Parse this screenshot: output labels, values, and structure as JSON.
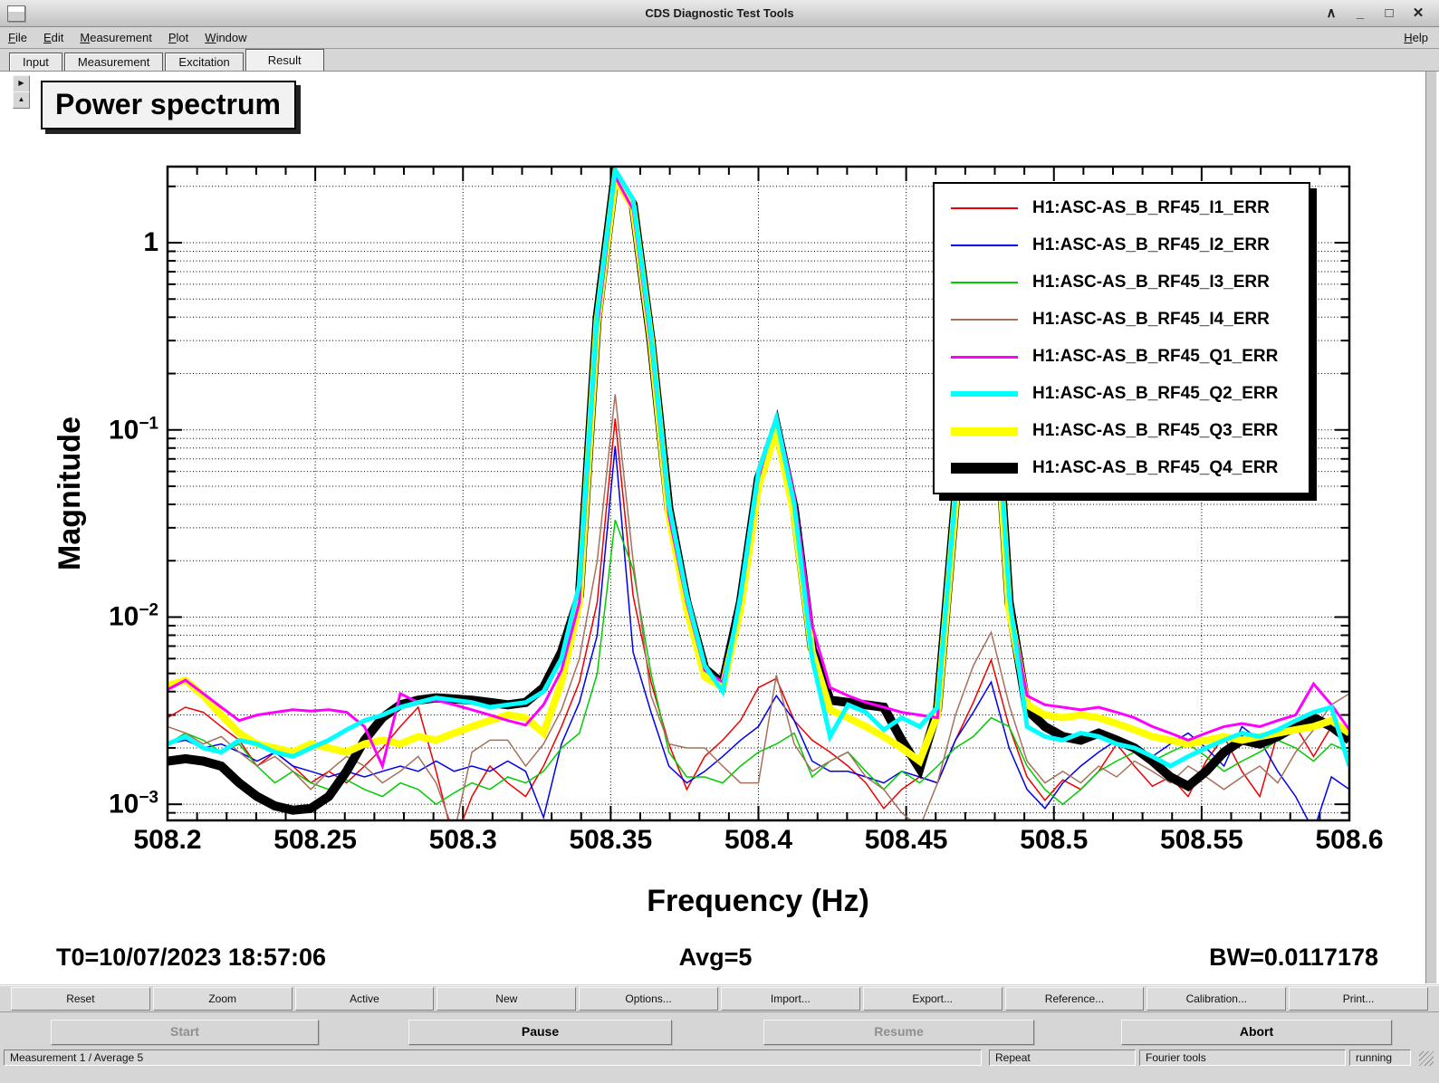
{
  "window": {
    "title": "CDS Diagnostic Test Tools",
    "controls": [
      {
        "name": "shade",
        "glyph": "∧"
      },
      {
        "name": "minimize",
        "glyph": "_"
      },
      {
        "name": "maximize",
        "glyph": "□"
      },
      {
        "name": "close",
        "glyph": "✕"
      }
    ]
  },
  "menubar": {
    "items": [
      "File",
      "Edit",
      "Measurement",
      "Plot",
      "Window"
    ],
    "help": "Help"
  },
  "tabs": {
    "items": [
      "Input",
      "Measurement",
      "Excitation",
      "Result"
    ],
    "active": "Result"
  },
  "plot": {
    "title": "Power spectrum",
    "xlabel": "Frequency (Hz)",
    "ylabel": "Magnitude",
    "t0": "T0=10/07/2023 18:57:06",
    "avg": "Avg=5",
    "bw": "BW=0.0117178"
  },
  "chart_data": {
    "type": "line",
    "title": "Power spectrum",
    "xlabel": "Frequency (Hz)",
    "ylabel": "Magnitude",
    "xscale": "linear",
    "yscale": "log",
    "xlim": [
      508.2,
      508.6
    ],
    "ylim": [
      0.00082,
      2.55
    ],
    "xticks_major": [
      508.2,
      508.25,
      508.3,
      508.35,
      508.4,
      508.45,
      508.5,
      508.55,
      508.6
    ],
    "xtick_minor_step": 0.01,
    "yticks_major": [
      1,
      0.1,
      0.01,
      0.001
    ],
    "grid": "dotted-log-minor",
    "legend_position": "upper-right",
    "t0": "10/07/2023 18:57:06",
    "avg": 5,
    "bw": 0.0117178,
    "x_start": 508.2,
    "x_step": 0.0060606,
    "peaks_hz": [
      508.35,
      508.405,
      508.47
    ],
    "series": [
      {
        "name": "H1:ASC-AS_B_RF45_I1_ERR",
        "color": "#ee0000",
        "width": 1.5,
        "values": [
          0.0029,
          0.0033,
          0.0031,
          0.0026,
          0.0022,
          0.0016,
          0.0019,
          0.0016,
          0.0013,
          0.0015,
          0.0013,
          0.0016,
          0.002,
          0.0026,
          0.0033,
          0.0015,
          0.00062,
          0.0011,
          0.0016,
          0.0013,
          0.0011,
          0.0016,
          0.0026,
          0.0045,
          0.012,
          0.115,
          0.013,
          0.0045,
          0.0021,
          0.0012,
          0.0018,
          0.0022,
          0.0028,
          0.0042,
          0.0047,
          0.0028,
          0.0022,
          0.0019,
          0.0016,
          0.0013,
          0.00095,
          0.0012,
          0.0014,
          0.0013,
          0.0022,
          0.0035,
          0.0059,
          0.0026,
          0.0014,
          0.00105,
          0.00135,
          0.0012,
          0.0015,
          0.0021,
          0.0016,
          0.00125,
          0.0014,
          0.0011,
          0.0017,
          0.0023,
          0.0015,
          0.0011,
          0.0024,
          0.0026,
          0.0018,
          0.0026,
          0.0023
        ]
      },
      {
        "name": "H1:ASC-AS_B_RF45_I2_ERR",
        "color": "#0000ee",
        "width": 1.5,
        "values": [
          0.0021,
          0.0022,
          0.002,
          0.0021,
          0.0019,
          0.0017,
          0.0019,
          0.0016,
          0.0015,
          0.0014,
          0.0015,
          0.0014,
          0.0015,
          0.0016,
          0.0015,
          0.0017,
          0.0015,
          0.0016,
          0.0015,
          0.0017,
          0.0015,
          0.00085,
          0.0021,
          0.0035,
          0.008,
          0.082,
          0.0065,
          0.0031,
          0.0016,
          0.0013,
          0.0015,
          0.0018,
          0.0022,
          0.0026,
          0.0038,
          0.0028,
          0.0017,
          0.0015,
          0.0015,
          0.0014,
          0.0013,
          0.0015,
          0.0014,
          0.0013,
          0.0022,
          0.0031,
          0.0045,
          0.002,
          0.0012,
          0.00095,
          0.0013,
          0.0016,
          0.0019,
          0.0022,
          0.002,
          0.0018,
          0.0021,
          0.0024,
          0.002,
          0.0016,
          0.0026,
          0.0022,
          0.0015,
          0.0011,
          0.00072,
          0.0014,
          0.0012
        ]
      },
      {
        "name": "H1:ASC-AS_B_RF45_I3_ERR",
        "color": "#00cc00",
        "width": 1.5,
        "values": [
          0.0021,
          0.0024,
          0.0022,
          0.0019,
          0.0021,
          0.0016,
          0.0013,
          0.0015,
          0.0013,
          0.0012,
          0.00135,
          0.0012,
          0.0011,
          0.0013,
          0.0012,
          0.001,
          0.00115,
          0.0013,
          0.0012,
          0.0014,
          0.0013,
          0.0015,
          0.002,
          0.0024,
          0.005,
          0.033,
          0.018,
          0.005,
          0.0019,
          0.0014,
          0.0014,
          0.0013,
          0.0016,
          0.0019,
          0.0021,
          0.0024,
          0.0014,
          0.0017,
          0.0019,
          0.0015,
          0.0012,
          0.0015,
          0.0013,
          0.0016,
          0.002,
          0.0023,
          0.0029,
          0.0026,
          0.0016,
          0.0012,
          0.001,
          0.0012,
          0.0015,
          0.0017,
          0.0019,
          0.0017,
          0.0019,
          0.0021,
          0.0018,
          0.0015,
          0.0017,
          0.0019,
          0.0022,
          0.002,
          0.0017,
          0.0021,
          0.0019
        ]
      },
      {
        "name": "H1:ASC-AS_B_RF45_I4_ERR",
        "color": "#a5705c",
        "width": 1.5,
        "values": [
          0.0026,
          0.0024,
          0.0021,
          0.0023,
          0.0019,
          0.0016,
          0.0018,
          0.0015,
          0.0012,
          0.0015,
          0.0018,
          0.0016,
          0.0013,
          0.0015,
          0.0018,
          0.0013,
          0.0007,
          0.0019,
          0.0022,
          0.0022,
          0.0016,
          0.0021,
          0.0032,
          0.006,
          0.02,
          0.155,
          0.02,
          0.0038,
          0.0021,
          0.002,
          0.002,
          0.0016,
          0.0013,
          0.0013,
          0.0049,
          0.0021,
          0.0015,
          0.0017,
          0.0019,
          0.0014,
          0.0012,
          0.0009,
          0.00075,
          0.0013,
          0.003,
          0.0055,
          0.0083,
          0.0034,
          0.0017,
          0.0013,
          0.0015,
          0.0013,
          0.0016,
          0.0014,
          0.0017,
          0.0015,
          0.0013,
          0.0016,
          0.0014,
          0.0012,
          0.0014,
          0.0016,
          0.0013,
          0.0019,
          0.0025,
          0.0034,
          0.0039
        ]
      },
      {
        "name": "H1:ASC-AS_B_RF45_Q1_ERR",
        "color": "#ff00ff",
        "width": 3,
        "values": [
          0.0041,
          0.0046,
          0.0039,
          0.0033,
          0.0028,
          0.003,
          0.0031,
          0.0032,
          0.00315,
          0.0032,
          0.0031,
          0.0026,
          0.0016,
          0.0039,
          0.0035,
          0.0036,
          0.0034,
          0.0032,
          0.003,
          0.0028,
          0.00265,
          0.0034,
          0.0052,
          0.012,
          0.35,
          2.25,
          1.5,
          0.28,
          0.035,
          0.012,
          0.0052,
          0.0045,
          0.012,
          0.055,
          0.12,
          0.045,
          0.009,
          0.0042,
          0.0038,
          0.0035,
          0.0033,
          0.0031,
          0.003,
          0.0029,
          0.04,
          0.9,
          0.35,
          0.012,
          0.0038,
          0.0034,
          0.0033,
          0.0032,
          0.0033,
          0.0031,
          0.0029,
          0.0026,
          0.0024,
          0.0022,
          0.0024,
          0.0026,
          0.0027,
          0.0026,
          0.0028,
          0.003,
          0.0044,
          0.0034,
          0.0025
        ]
      },
      {
        "name": "H1:ASC-AS_B_RF45_Q2_ERR",
        "color": "#00ffff",
        "width": 5,
        "values": [
          0.0021,
          0.0023,
          0.002,
          0.0019,
          0.0022,
          0.0021,
          0.0019,
          0.0018,
          0.002,
          0.0022,
          0.0025,
          0.0028,
          0.003,
          0.0033,
          0.0035,
          0.0037,
          0.0036,
          0.0035,
          0.0033,
          0.0034,
          0.0035,
          0.004,
          0.006,
          0.015,
          0.42,
          2.45,
          1.7,
          0.32,
          0.04,
          0.013,
          0.0055,
          0.004,
          0.013,
          0.06,
          0.115,
          0.04,
          0.006,
          0.0023,
          0.0034,
          0.0031,
          0.0025,
          0.0029,
          0.0026,
          0.0033,
          0.045,
          1.0,
          0.4,
          0.013,
          0.0026,
          0.0023,
          0.0022,
          0.0024,
          0.0023,
          0.0021,
          0.002,
          0.0018,
          0.0016,
          0.0018,
          0.002,
          0.0022,
          0.0024,
          0.0023,
          0.0025,
          0.0028,
          0.0031,
          0.0033,
          0.0016
        ]
      },
      {
        "name": "H1:ASC-AS_B_RF45_Q3_ERR",
        "color": "#ffff00",
        "width": 8,
        "values": [
          0.0043,
          0.0046,
          0.0038,
          0.003,
          0.0024,
          0.0021,
          0.002,
          0.0019,
          0.0021,
          0.002,
          0.0019,
          0.0021,
          0.0022,
          0.0021,
          0.0023,
          0.0022,
          0.0024,
          0.0026,
          0.0028,
          0.003,
          0.0029,
          0.0024,
          0.0045,
          0.012,
          0.38,
          2.2,
          1.55,
          0.3,
          0.035,
          0.011,
          0.0048,
          0.0042,
          0.011,
          0.05,
          0.1,
          0.035,
          0.0065,
          0.0032,
          0.0029,
          0.0026,
          0.0023,
          0.002,
          0.0017,
          0.003,
          0.04,
          0.85,
          0.33,
          0.011,
          0.0034,
          0.003,
          0.0029,
          0.003,
          0.0029,
          0.0027,
          0.0025,
          0.0023,
          0.0022,
          0.0021,
          0.0022,
          0.0023,
          0.0022,
          0.0023,
          0.0024,
          0.0025,
          0.0026,
          0.0028,
          0.0024
        ]
      },
      {
        "name": "H1:ASC-AS_B_RF45_Q4_ERR",
        "color": "#000000",
        "width": 10,
        "values": [
          0.0017,
          0.00175,
          0.0017,
          0.0016,
          0.0013,
          0.0011,
          0.00098,
          0.00093,
          0.00095,
          0.0011,
          0.0015,
          0.0022,
          0.0029,
          0.0034,
          0.0036,
          0.0037,
          0.00365,
          0.0036,
          0.0035,
          0.0034,
          0.0035,
          0.0042,
          0.0065,
          0.013,
          0.4,
          2.3,
          1.6,
          0.3,
          0.038,
          0.012,
          0.0053,
          0.0044,
          0.012,
          0.055,
          0.105,
          0.038,
          0.0068,
          0.0036,
          0.0035,
          0.0034,
          0.0033,
          0.0022,
          0.00155,
          0.0032,
          0.042,
          0.9,
          0.36,
          0.012,
          0.0032,
          0.0026,
          0.0023,
          0.0022,
          0.0024,
          0.0022,
          0.002,
          0.0017,
          0.0014,
          0.00125,
          0.0015,
          0.0019,
          0.0022,
          0.0021,
          0.0023,
          0.0026,
          0.0029,
          0.0026,
          0.0022
        ]
      }
    ],
    "draw_order": [
      0,
      1,
      2,
      3,
      7,
      6,
      4,
      5
    ]
  },
  "toolbar": {
    "buttons": [
      "Reset",
      "Zoom",
      "Active",
      "New",
      "Options...",
      "Import...",
      "Export...",
      "Reference...",
      "Calibration...",
      "Print..."
    ]
  },
  "controls": {
    "buttons": [
      {
        "label": "Start",
        "enabled": false
      },
      {
        "label": "Pause",
        "enabled": true
      },
      {
        "label": "Resume",
        "enabled": false
      },
      {
        "label": "Abort",
        "enabled": true
      }
    ]
  },
  "statusbar": {
    "measurement": "Measurement 1 / Average 5",
    "repeat": "Repeat",
    "tools": "Fourier tools",
    "state": "running"
  }
}
